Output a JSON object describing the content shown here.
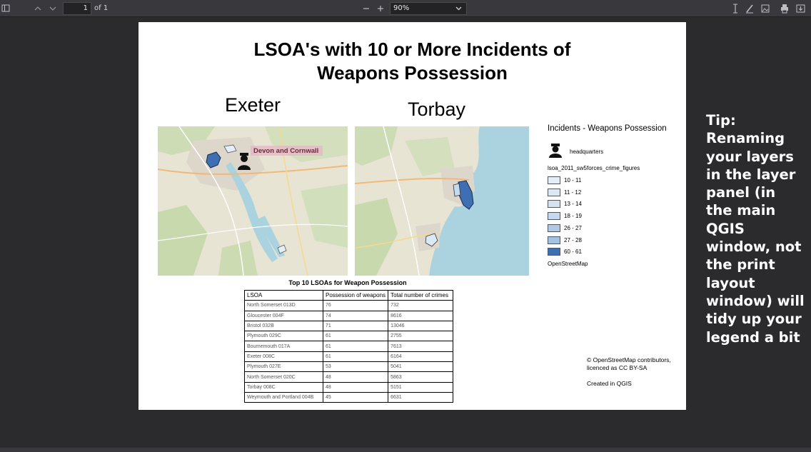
{
  "toolbar": {
    "page_number": "1",
    "page_of": "of 1",
    "zoom": "90%",
    "icons": [
      "sidebar-toggle-icon",
      "page-up-icon",
      "page-down-icon",
      "zoom-out-icon",
      "zoom-in-icon",
      "text-tool-icon",
      "draw-icon",
      "image-icon",
      "print-icon",
      "save-icon"
    ]
  },
  "document": {
    "title_line1": "LSOA's with 10 or More Incidents of",
    "title_line2": "Weapons Possession",
    "map_exeter_label": "Exeter",
    "map_torbay_label": "Torbay",
    "map_exeter_annotation": "Devon and Cornwall",
    "legend": {
      "title": "Incidents - Weapons Possession",
      "hq_label": "headquarters",
      "layer_name": "lsoa_2011_sw5forces_crime_figures",
      "classes": [
        {
          "label": "10 - 11",
          "color": "#e4eef8"
        },
        {
          "label": "11 - 12",
          "color": "#dbe8f5"
        },
        {
          "label": "13 - 14",
          "color": "#d3e3f2"
        },
        {
          "label": "18 - 19",
          "color": "#c6d9ee"
        },
        {
          "label": "26 - 27",
          "color": "#afc9e6"
        },
        {
          "label": "27 - 28",
          "color": "#a4c2e2"
        },
        {
          "label": "60 - 61",
          "color": "#3f6fb3"
        }
      ],
      "basemap": "OpenStreetMap"
    },
    "table": {
      "title": "Top 10 LSOAs for Weapon Possession",
      "headers": [
        "LSOA",
        "Possession of weapons",
        "Total number of crimes"
      ],
      "rows": [
        [
          "North Somerset 013D",
          "76",
          "732"
        ],
        [
          "Gloucester 004F",
          "74",
          "8616"
        ],
        [
          "Bristol 032B",
          "71",
          "13046"
        ],
        [
          "Plymouth 029C",
          "61",
          "2755"
        ],
        [
          "Bournemouth 017A",
          "61",
          "7613"
        ],
        [
          "Exeter 008C",
          "61",
          "6164"
        ],
        [
          "Plymouth 027E",
          "53",
          "5041"
        ],
        [
          "North Somerset 020C",
          "48",
          "5863"
        ],
        [
          "Torbay 008C",
          "48",
          "5151"
        ],
        [
          "Weymouth and Portland 004B",
          "45",
          "6631"
        ]
      ]
    },
    "credits_line1": "© OpenStreetMap contributors,",
    "credits_line2": "licenced as CC BY-SA",
    "created_in": "Created in QGIS"
  },
  "tip": {
    "heading": "Tip:",
    "body": "Renaming your layers in the layer panel (in the main QGIS window, not the print layout window) will tidy up your legend a bit"
  },
  "colors": {
    "viewer_background": "#2b2b2d",
    "toolbar": "#38383d",
    "sea": "#aad3df",
    "land": "#e7e4d4",
    "lsoa_highlight": "#3f6fb3"
  }
}
